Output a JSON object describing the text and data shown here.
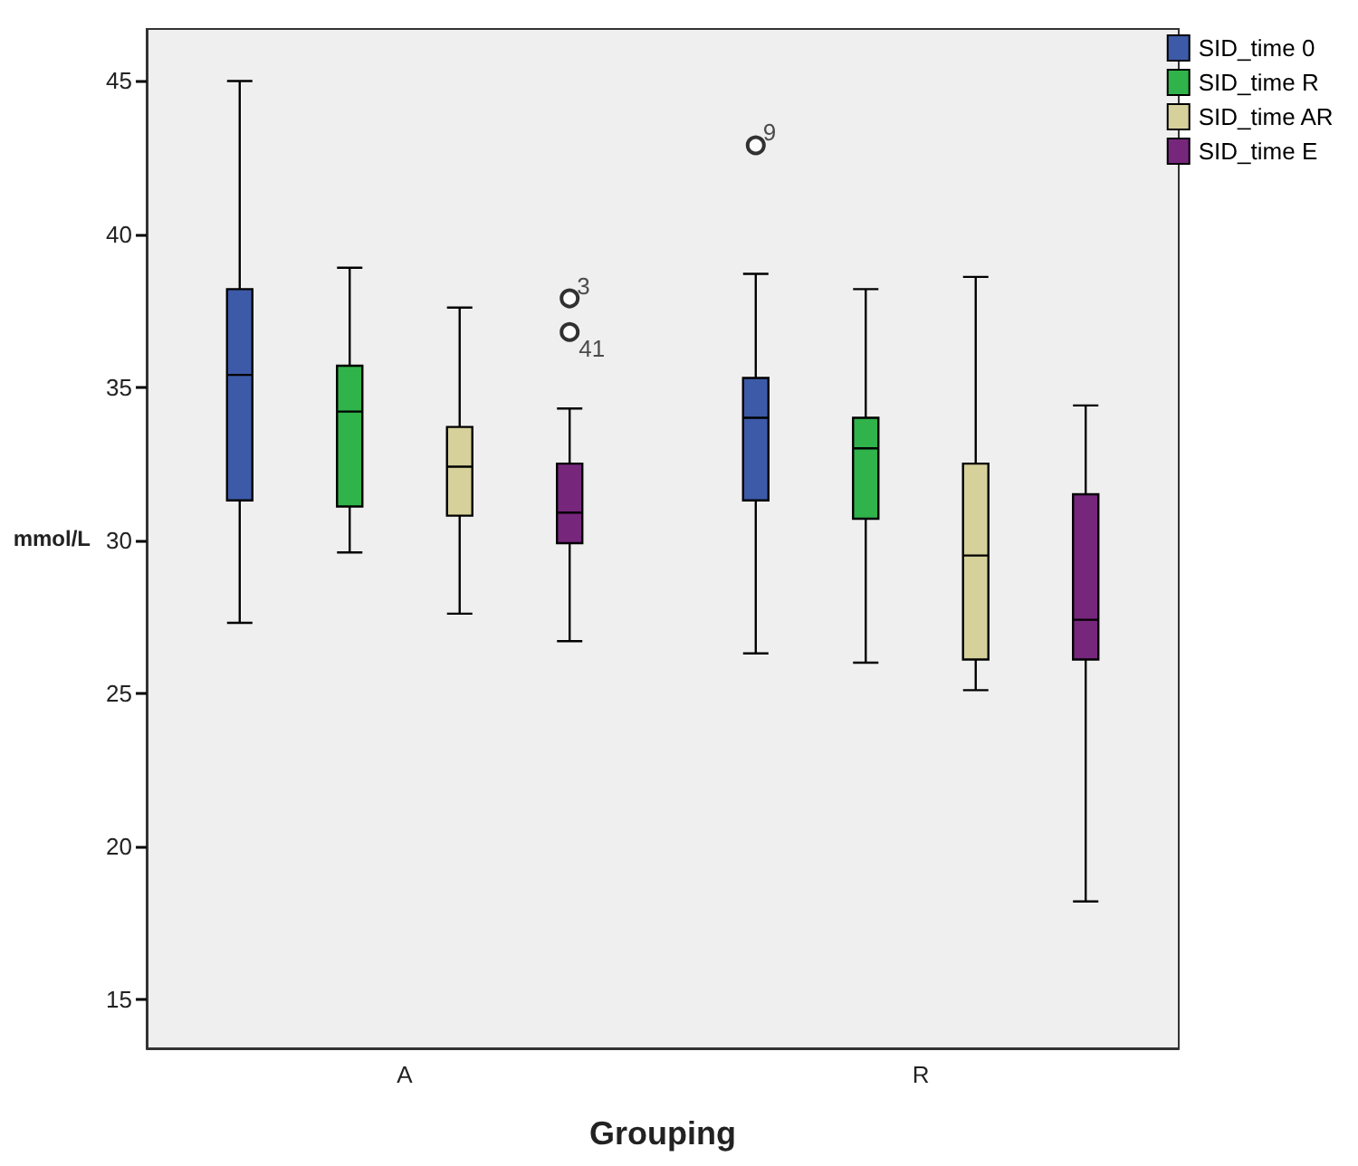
{
  "chart_data": {
    "type": "box",
    "xlabel": "Grouping",
    "ylabel": "mmol/L",
    "categories": [
      "A",
      "R"
    ],
    "ylim": [
      13.4,
      46.7
    ],
    "yticks": [
      15,
      20,
      25,
      30,
      35,
      40,
      45
    ],
    "grid": false,
    "legend": "top right",
    "series": [
      {
        "name": "SID_time 0",
        "color": "#3c5aa8",
        "boxes": [
          {
            "low": 27.3,
            "q1": 31.3,
            "median": 35.4,
            "q3": 38.2,
            "high": 45
          },
          {
            "low": 26.3,
            "q1": 31.3,
            "median": 34.0,
            "q3": 35.3,
            "high": 38.7,
            "outliers": [
              42.9
            ]
          }
        ]
      },
      {
        "name": "SID_time R",
        "color": "#2fb34a",
        "boxes": [
          {
            "low": 29.6,
            "q1": 31.1,
            "median": 34.2,
            "q3": 35.7,
            "high": 38.9
          },
          {
            "low": 26.0,
            "q1": 30.7,
            "median": 33.0,
            "q3": 34.0,
            "high": 38.2
          }
        ]
      },
      {
        "name": "SID_time AR",
        "color": "#d6d09a",
        "boxes": [
          {
            "low": 27.6,
            "q1": 30.8,
            "median": 32.4,
            "q3": 33.7,
            "high": 37.6
          },
          {
            "low": 25.1,
            "q1": 26.1,
            "median": 29.5,
            "q3": 32.5,
            "high": 38.6
          }
        ]
      },
      {
        "name": "SID_time E",
        "color": "#76277c",
        "boxes": [
          {
            "low": 26.7,
            "q1": 29.9,
            "median": 30.9,
            "q3": 32.5,
            "high": 34.3,
            "outliers": [
              37.9,
              36.8
            ]
          },
          {
            "low": 18.2,
            "q1": 26.1,
            "median": 27.4,
            "q3": 31.5,
            "high": 34.4
          }
        ]
      }
    ],
    "annotations": [
      "9",
      "3",
      "41"
    ]
  }
}
